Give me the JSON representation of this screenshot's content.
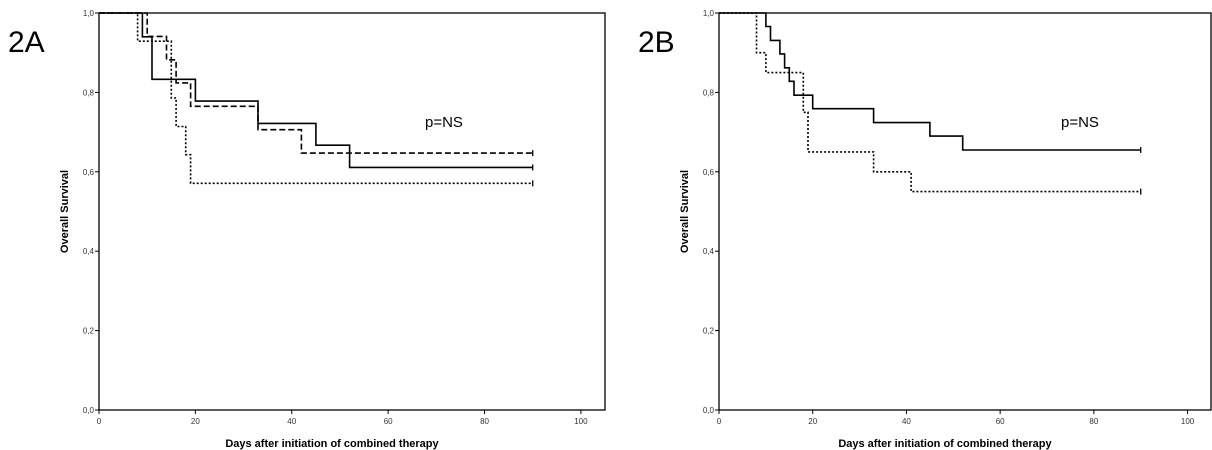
{
  "chart_data": [
    {
      "panel_label": "2A",
      "type": "line",
      "step": true,
      "xlabel": "Days after initiation of combined therapy",
      "ylabel": "Overall Survival",
      "xlim": [
        0,
        105
      ],
      "ylim": [
        0,
        1.0
      ],
      "x_ticks": [
        "0",
        "20",
        "40",
        "60",
        "80",
        "100"
      ],
      "y_ticks": [
        "0,0",
        "0,2",
        "0,4",
        "0,6",
        "0,8",
        "1,0"
      ],
      "annotation": "p=NS",
      "grid": false,
      "series": [
        {
          "style": "solid",
          "x": [
            0,
            9,
            9,
            11,
            11,
            20,
            20,
            33,
            33,
            45,
            45,
            52,
            52,
            90
          ],
          "y": [
            1.0,
            1.0,
            0.94,
            0.94,
            0.833,
            0.833,
            0.778,
            0.778,
            0.722,
            0.722,
            0.667,
            0.667,
            0.611,
            0.611
          ]
        },
        {
          "style": "dashed",
          "x": [
            0,
            10,
            10,
            14,
            14,
            16,
            16,
            19,
            19,
            33,
            33,
            42,
            42,
            90
          ],
          "y": [
            1.0,
            1.0,
            0.941,
            0.941,
            0.882,
            0.882,
            0.824,
            0.824,
            0.765,
            0.765,
            0.706,
            0.706,
            0.647,
            0.647
          ]
        },
        {
          "style": "dotted",
          "x": [
            0,
            8,
            8,
            15,
            15,
            16,
            16,
            18,
            18,
            19,
            19,
            90
          ],
          "y": [
            1.0,
            1.0,
            0.929,
            0.929,
            0.786,
            0.786,
            0.714,
            0.714,
            0.643,
            0.643,
            0.571,
            0.571
          ]
        }
      ]
    },
    {
      "panel_label": "2B",
      "type": "line",
      "step": true,
      "xlabel": "Days after initiation of combined therapy",
      "ylabel": "Overall Survival",
      "xlim": [
        0,
        105
      ],
      "ylim": [
        0,
        1.0
      ],
      "x_ticks": [
        "0",
        "20",
        "40",
        "60",
        "80",
        "100"
      ],
      "y_ticks": [
        "0,0",
        "0,2",
        "0,4",
        "0,6",
        "0,8",
        "1,0"
      ],
      "annotation": "p=NS",
      "grid": false,
      "series": [
        {
          "style": "solid",
          "x": [
            0,
            10,
            10,
            11,
            11,
            13,
            13,
            14,
            14,
            15,
            15,
            16,
            16,
            20,
            20,
            33,
            33,
            45,
            45,
            52,
            52,
            90
          ],
          "y": [
            1.0,
            1.0,
            0.966,
            0.966,
            0.931,
            0.931,
            0.897,
            0.897,
            0.862,
            0.862,
            0.828,
            0.828,
            0.793,
            0.793,
            0.759,
            0.759,
            0.724,
            0.724,
            0.69,
            0.69,
            0.655,
            0.655
          ]
        },
        {
          "style": "dotted",
          "x": [
            0,
            8,
            8,
            10,
            10,
            18,
            18,
            19,
            19,
            33,
            33,
            41,
            41,
            90
          ],
          "y": [
            1.0,
            1.0,
            0.9,
            0.9,
            0.85,
            0.85,
            0.75,
            0.75,
            0.65,
            0.65,
            0.6,
            0.6,
            0.55,
            0.55
          ]
        }
      ]
    }
  ]
}
